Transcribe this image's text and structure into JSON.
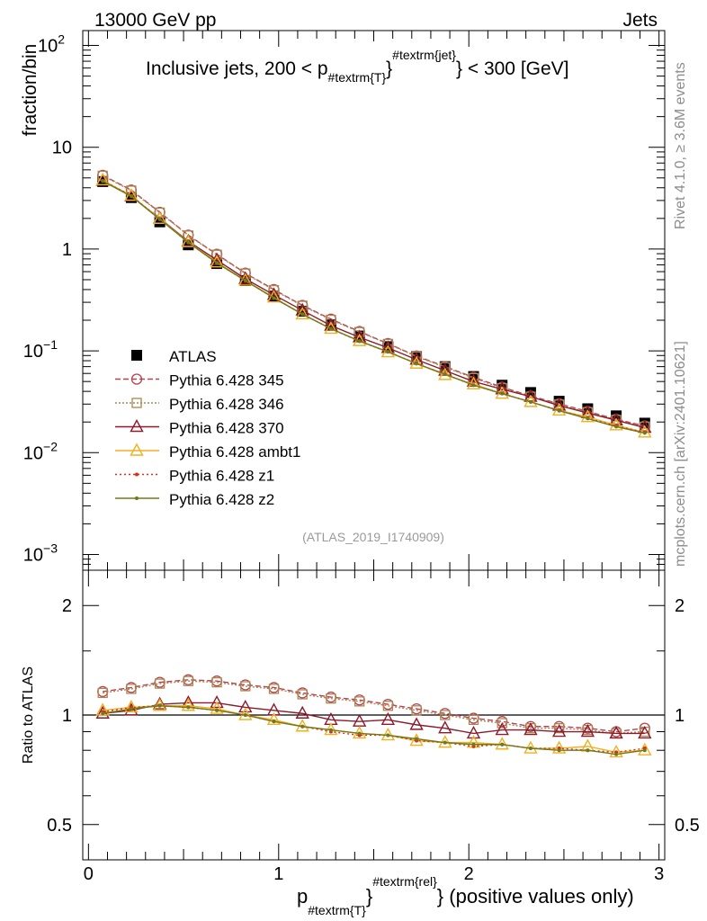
{
  "header": {
    "left": "13000 GeV pp",
    "right": "Jets"
  },
  "side_labels": {
    "rivet": "Rivet 4.1.0, ≥ 3.6M events",
    "mcplots": "mcplots.cern.ch [arXiv:2401.10621]"
  },
  "chart_data": [
    {
      "type": "line",
      "panel": "main",
      "title": "Inclusive jets, 200 < p_{#textrm{T}}^{#textrm{jet}} < 300 [GeV]",
      "title_parts": {
        "pre": "Inclusive jets, 200 < p",
        "sub": "#textrm{T}",
        "sup": "#textrm{jet}",
        "post": "< 300 [GeV]"
      },
      "ylabel": "fraction/bin",
      "yscale": "log",
      "ylim": [
        0.0007,
        140
      ],
      "xlim": [
        -0.03,
        3.03
      ],
      "yticks": [
        {
          "v": 0.001,
          "base": "10",
          "exp": "−3"
        },
        {
          "v": 0.01,
          "base": "10",
          "exp": "−2"
        },
        {
          "v": 0.1,
          "base": "10",
          "exp": "−1"
        },
        {
          "v": 1,
          "base": "1",
          "exp": ""
        },
        {
          "v": 10,
          "base": "10",
          "exp": ""
        },
        {
          "v": 100,
          "base": "10",
          "exp": "2"
        }
      ],
      "watermark": "(ATLAS_2019_I1740909)",
      "x": [
        0.075,
        0.225,
        0.375,
        0.525,
        0.675,
        0.825,
        0.975,
        1.125,
        1.275,
        1.425,
        1.575,
        1.725,
        1.875,
        2.025,
        2.175,
        2.325,
        2.475,
        2.625,
        2.775,
        2.925
      ],
      "series": [
        {
          "name": "ATLAS",
          "label": "ATLAS",
          "color": "#000000",
          "marker": "square",
          "values": [
            4.6,
            3.2,
            1.85,
            1.1,
            0.72,
            0.49,
            0.345,
            0.245,
            0.18,
            0.14,
            0.11,
            0.088,
            0.07,
            0.056,
            0.046,
            0.039,
            0.032,
            0.027,
            0.023,
            0.0195
          ]
        },
        {
          "name": "Pythia 6.428 345",
          "label": "Pythia 6.428 345",
          "color": "#b5424f",
          "marker": "circle",
          "dash": "6,3",
          "values": [
            5.3,
            3.8,
            2.3,
            1.37,
            0.89,
            0.58,
            0.4,
            0.28,
            0.205,
            0.155,
            0.118,
            0.089,
            0.07,
            0.055,
            0.044,
            0.036,
            0.0302,
            0.0254,
            0.0213,
            0.0183
          ]
        },
        {
          "name": "Pythia 6.428 346",
          "label": "Pythia 6.428 346",
          "color": "#ad8452",
          "marker": "square-open",
          "dash": "2,2",
          "values": [
            5.25,
            3.75,
            2.28,
            1.36,
            0.88,
            0.575,
            0.395,
            0.277,
            0.202,
            0.153,
            0.117,
            0.088,
            0.069,
            0.054,
            0.043,
            0.0355,
            0.0297,
            0.025,
            0.021,
            0.018
          ]
        },
        {
          "name": "Pythia 6.428 370",
          "label": "Pythia 6.428 370",
          "color": "#8b1a2c",
          "marker": "triangle-open",
          "dash": "",
          "values": [
            4.7,
            3.3,
            2.0,
            1.19,
            0.78,
            0.51,
            0.355,
            0.25,
            0.177,
            0.136,
            0.107,
            0.082,
            0.064,
            0.05,
            0.042,
            0.0355,
            0.029,
            0.0245,
            0.0208,
            0.0176
          ]
        },
        {
          "name": "Pythia 6.428 ambt1",
          "label": "Pythia 6.428 ambt1",
          "color": "#f0b022",
          "marker": "triangle-open",
          "dash": "",
          "values": [
            4.75,
            3.35,
            1.98,
            1.17,
            0.74,
            0.49,
            0.335,
            0.229,
            0.165,
            0.125,
            0.097,
            0.075,
            0.058,
            0.047,
            0.038,
            0.0315,
            0.026,
            0.0224,
            0.0186,
            0.0158
          ]
        },
        {
          "name": "Pythia 6.428 z1",
          "label": "Pythia 6.428 z1",
          "color": "#dd2a1a",
          "marker": "dot",
          "dash": "2,3",
          "values": [
            4.7,
            3.35,
            1.97,
            1.16,
            0.73,
            0.49,
            0.33,
            0.23,
            0.165,
            0.124,
            0.098,
            0.075,
            0.059,
            0.046,
            0.038,
            0.0315,
            0.026,
            0.0218,
            0.0183,
            0.0158
          ]
        },
        {
          "name": "Pythia 6.428 z2",
          "label": "Pythia 6.428 z2",
          "color": "#707a1a",
          "marker": "dot",
          "dash": "",
          "values": [
            4.65,
            3.3,
            1.96,
            1.16,
            0.73,
            0.49,
            0.33,
            0.229,
            0.165,
            0.125,
            0.098,
            0.075,
            0.059,
            0.046,
            0.038,
            0.0315,
            0.0258,
            0.0216,
            0.018,
            0.0156
          ]
        }
      ]
    },
    {
      "type": "line",
      "panel": "ratio",
      "ylabel": "Ratio to ATLAS",
      "xlabel": "p_{#textrm{T}}^{#textrm{rel}} (positive values only)",
      "xlabel_parts": {
        "pre": "p",
        "sub": "#textrm{T}",
        "sup": "#textrm{rel}",
        "post": "(positive values only)"
      },
      "yscale": "log",
      "ylim": [
        0.4,
        2.5
      ],
      "xlim": [
        -0.03,
        3.03
      ],
      "xticks": [
        0,
        1,
        2,
        3
      ],
      "xtick_labels": [
        "0",
        "1",
        "2",
        "3"
      ],
      "yticks": [
        0.5,
        1,
        2
      ],
      "ytick_labels": [
        "0.5",
        "1",
        "2"
      ],
      "reference": 1,
      "x": [
        0.075,
        0.225,
        0.375,
        0.525,
        0.675,
        0.825,
        0.975,
        1.125,
        1.275,
        1.425,
        1.575,
        1.725,
        1.875,
        2.025,
        2.175,
        2.325,
        2.475,
        2.625,
        2.775,
        2.925
      ],
      "series": [
        {
          "name": "Pythia 6.428 345",
          "values": [
            1.16,
            1.19,
            1.23,
            1.25,
            1.24,
            1.21,
            1.19,
            1.15,
            1.12,
            1.1,
            1.07,
            1.04,
            1.01,
            0.98,
            0.96,
            0.93,
            0.93,
            0.92,
            0.9,
            0.92
          ]
        },
        {
          "name": "Pythia 6.428 346",
          "values": [
            1.15,
            1.18,
            1.22,
            1.24,
            1.23,
            1.2,
            1.18,
            1.14,
            1.11,
            1.09,
            1.06,
            1.03,
            1.0,
            0.97,
            0.95,
            0.92,
            0.92,
            0.91,
            0.89,
            0.9
          ]
        },
        {
          "name": "Pythia 6.428 370",
          "values": [
            1.01,
            1.03,
            1.07,
            1.08,
            1.08,
            1.05,
            1.03,
            1.01,
            0.97,
            0.96,
            0.97,
            0.94,
            0.92,
            0.89,
            0.91,
            0.91,
            0.9,
            0.9,
            0.89,
            0.89
          ]
        },
        {
          "name": "Pythia 6.428 ambt1",
          "values": [
            1.03,
            1.05,
            1.06,
            1.06,
            1.04,
            1.0,
            0.97,
            0.93,
            0.91,
            0.89,
            0.88,
            0.85,
            0.84,
            0.84,
            0.83,
            0.81,
            0.81,
            0.82,
            0.79,
            0.8
          ]
        },
        {
          "name": "Pythia 6.428 z1",
          "values": [
            1.02,
            1.05,
            1.06,
            1.05,
            1.03,
            1.0,
            0.96,
            0.93,
            0.9,
            0.88,
            0.88,
            0.85,
            0.84,
            0.82,
            0.83,
            0.81,
            0.81,
            0.8,
            0.79,
            0.81
          ]
        },
        {
          "name": "Pythia 6.428 z2",
          "values": [
            1.01,
            1.04,
            1.06,
            1.05,
            1.03,
            1.0,
            0.96,
            0.93,
            0.91,
            0.89,
            0.88,
            0.86,
            0.84,
            0.83,
            0.83,
            0.81,
            0.8,
            0.8,
            0.78,
            0.8
          ]
        }
      ]
    }
  ]
}
